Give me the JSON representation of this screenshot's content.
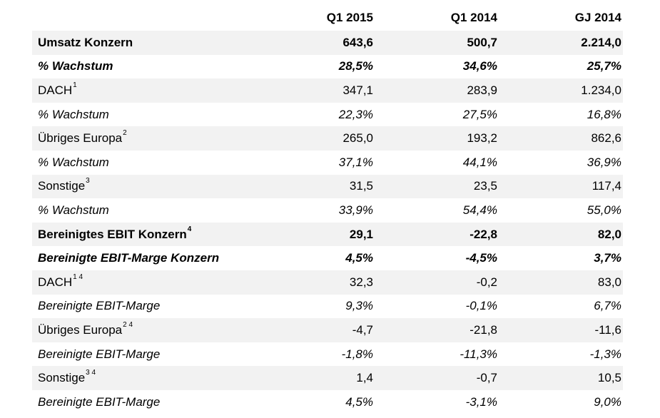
{
  "header": {
    "label": "",
    "col1": "Q1 2015",
    "col2": "Q1 2014",
    "col3": "GJ 2014"
  },
  "rows": [
    {
      "label": "Umsatz Konzern",
      "sup": "",
      "style": "bold",
      "values": [
        "643,6",
        "500,7",
        "2.214,0"
      ]
    },
    {
      "label": "% Wachstum",
      "sup": "",
      "style": "bold-italic",
      "values": [
        "28,5%",
        "34,6%",
        "25,7%"
      ]
    },
    {
      "label": "DACH",
      "sup": "1",
      "style": "normal",
      "values": [
        "347,1",
        "283,9",
        "1.234,0"
      ]
    },
    {
      "label": "% Wachstum",
      "sup": "",
      "style": "italic",
      "values": [
        "22,3%",
        "27,5%",
        "16,8%"
      ]
    },
    {
      "label": "Übriges Europa",
      "sup": "2",
      "style": "normal",
      "values": [
        "265,0",
        "193,2",
        "862,6"
      ]
    },
    {
      "label": "% Wachstum",
      "sup": "",
      "style": "italic",
      "values": [
        "37,1%",
        "44,1%",
        "36,9%"
      ]
    },
    {
      "label": "Sonstige",
      "sup": "3",
      "style": "normal",
      "values": [
        "31,5",
        "23,5",
        "117,4"
      ]
    },
    {
      "label": "% Wachstum",
      "sup": "",
      "style": "italic",
      "values": [
        "33,9%",
        "54,4%",
        "55,0%"
      ]
    },
    {
      "label": "Bereinigtes EBIT Konzern",
      "sup": "4",
      "style": "bold",
      "values": [
        "29,1",
        "-22,8",
        "82,0"
      ]
    },
    {
      "label": "Bereinigte EBIT-Marge Konzern",
      "sup": "",
      "style": "bold-italic",
      "values": [
        "4,5%",
        "-4,5%",
        "3,7%"
      ]
    },
    {
      "label": "DACH",
      "sup": "1 4",
      "style": "normal",
      "values": [
        "32,3",
        "-0,2",
        "83,0"
      ]
    },
    {
      "label": "Bereinigte EBIT-Marge",
      "sup": "",
      "style": "italic",
      "values": [
        "9,3%",
        "-0,1%",
        "6,7%"
      ]
    },
    {
      "label": "Übriges Europa",
      "sup": "2 4",
      "style": "normal",
      "values": [
        "-4,7",
        "-21,8",
        "-11,6"
      ]
    },
    {
      "label": "Bereinigte EBIT-Marge",
      "sup": "",
      "style": "italic",
      "values": [
        "-1,8%",
        "-11,3%",
        "-1,3%"
      ]
    },
    {
      "label": "Sonstige",
      "sup": "3 4",
      "style": "normal",
      "values": [
        "1,4",
        "-0,7",
        "10,5"
      ]
    },
    {
      "label": "Bereinigte EBIT-Marge",
      "sup": "",
      "style": "italic",
      "values": [
        "4,5%",
        "-3,1%",
        "9,0%"
      ]
    }
  ]
}
